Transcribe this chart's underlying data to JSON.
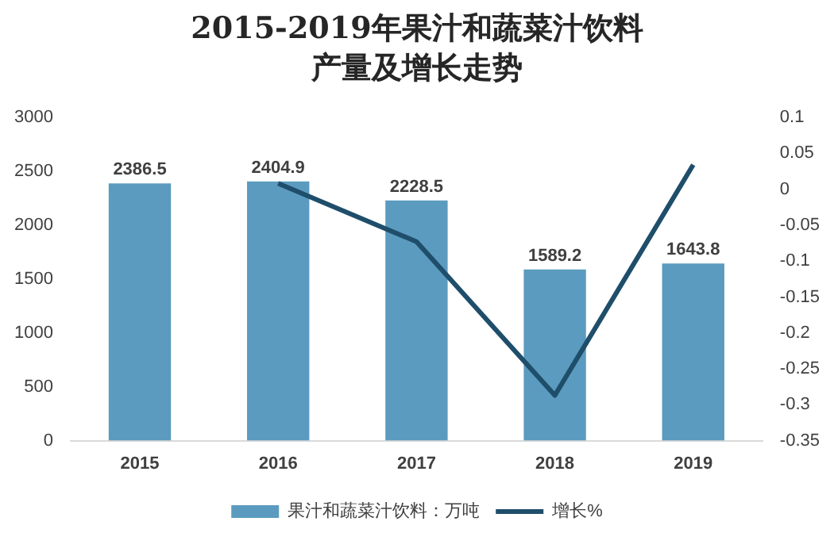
{
  "chart_data": {
    "type": "bar",
    "title": "2015-2019年果汁和蔬菜汁饮料产量及增长走势",
    "categories": [
      "2015",
      "2016",
      "2017",
      "2018",
      "2019"
    ],
    "series": [
      {
        "name": "果汁和蔬菜汁饮料：万吨",
        "color": "#5b9bbf",
        "values": [
          2386.5,
          2404.9,
          2228.5,
          1589.2,
          1643.8
        ],
        "value_labels": [
          "2386.5",
          "2404.9",
          "2228.5",
          "1589.2",
          "1643.8"
        ]
      },
      {
        "name": "增长%",
        "type": "line",
        "axis": "y2",
        "color": "#1f4e6b",
        "values": [
          null,
          0.008,
          -0.073,
          -0.287,
          0.034
        ]
      }
    ],
    "ylim": [
      0,
      3000
    ],
    "yticks": [
      0,
      500,
      1000,
      1500,
      2000,
      2500,
      3000
    ],
    "y2lim": [
      -0.35,
      0.1
    ],
    "y2ticks": [
      -0.35,
      -0.3,
      -0.25,
      -0.2,
      -0.15,
      -0.1,
      -0.05,
      0,
      0.05,
      0.1
    ],
    "grid": false,
    "legend": "bottom",
    "marker": "none",
    "line_style": "solid"
  }
}
